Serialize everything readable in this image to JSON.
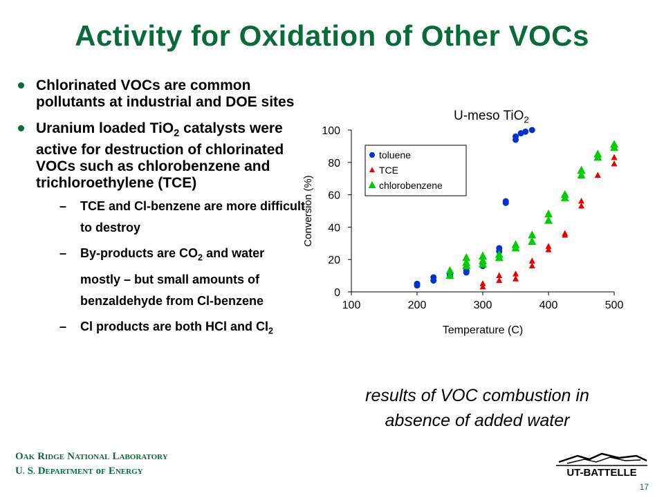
{
  "slide": {
    "title": "Activity for Oxidation of Other VOCs",
    "bullets": [
      "Chlorinated VOCs are common pollutants at industrial and DOE sites",
      "catalysts were active for destruction of chlorinated VOCs such as chlorobenzene and trichloroethylene (TCE)"
    ],
    "bullet2_prefix": "Uranium loaded TiO",
    "bullet2_sub": "2",
    "subbullets": {
      "s1": "TCE and Cl-benzene are more difficult to destroy",
      "s2_a": "By-products are CO",
      "s2_sub": "2",
      "s2_b": " and water mostly – but small amounts of benzaldehyde from Cl-benzene",
      "s3_a": "Cl products are both HCl and Cl",
      "s3_sub": "2"
    },
    "caption_line1": "results of VOC combustion in",
    "caption_line2": "absence of added water",
    "footer_line1": "Oak Ridge National Laboratory",
    "footer_line2": "U. S. Department of Energy",
    "page_number": "17",
    "logo_text": "UT-BATTELLE",
    "accent_color": "#0a6b3a"
  },
  "chart_data": {
    "type": "scatter",
    "title_main": "U-meso TiO",
    "title_sub": "2",
    "xlabel": "Temperature (C)",
    "ylabel": "Conversion (%)",
    "xlim": [
      100,
      500
    ],
    "ylim": [
      0,
      100
    ],
    "xticks": [
      100,
      200,
      300,
      400,
      500
    ],
    "yticks": [
      0,
      20,
      40,
      60,
      80,
      100
    ],
    "grid": false,
    "legend_position": "top-left",
    "series": [
      {
        "name": "toluene",
        "marker": "circle",
        "color": "#0033cc",
        "points": [
          [
            200,
            4
          ],
          [
            200,
            5
          ],
          [
            225,
            7
          ],
          [
            225,
            9
          ],
          [
            250,
            10
          ],
          [
            250,
            11
          ],
          [
            275,
            12
          ],
          [
            275,
            13
          ],
          [
            300,
            16
          ],
          [
            300,
            18
          ],
          [
            325,
            25
          ],
          [
            325,
            27
          ],
          [
            335,
            55
          ],
          [
            335,
            56
          ],
          [
            350,
            94
          ],
          [
            350,
            96
          ],
          [
            358,
            98
          ],
          [
            365,
            99
          ],
          [
            375,
            100
          ]
        ]
      },
      {
        "name": "TCE",
        "marker": "triangle",
        "color": "#e60000",
        "points": [
          [
            300,
            3
          ],
          [
            300,
            5
          ],
          [
            325,
            7
          ],
          [
            325,
            10
          ],
          [
            350,
            8
          ],
          [
            350,
            11
          ],
          [
            375,
            16
          ],
          [
            375,
            19
          ],
          [
            400,
            26
          ],
          [
            400,
            28
          ],
          [
            425,
            35
          ],
          [
            425,
            36
          ],
          [
            450,
            53
          ],
          [
            450,
            56
          ],
          [
            475,
            72
          ],
          [
            500,
            79
          ],
          [
            500,
            83
          ]
        ]
      },
      {
        "name": "chlorobenzene",
        "marker": "triangle",
        "color": "#00cc00",
        "points": [
          [
            250,
            10
          ],
          [
            250,
            13
          ],
          [
            275,
            16
          ],
          [
            275,
            18
          ],
          [
            275,
            21
          ],
          [
            300,
            17
          ],
          [
            300,
            19
          ],
          [
            300,
            22
          ],
          [
            325,
            21
          ],
          [
            325,
            23
          ],
          [
            350,
            27
          ],
          [
            350,
            29
          ],
          [
            375,
            31
          ],
          [
            375,
            35
          ],
          [
            400,
            44
          ],
          [
            400,
            48
          ],
          [
            425,
            58
          ],
          [
            425,
            60
          ],
          [
            450,
            72
          ],
          [
            450,
            75
          ],
          [
            475,
            83
          ],
          [
            475,
            85
          ],
          [
            500,
            89
          ],
          [
            500,
            91
          ]
        ]
      }
    ]
  }
}
